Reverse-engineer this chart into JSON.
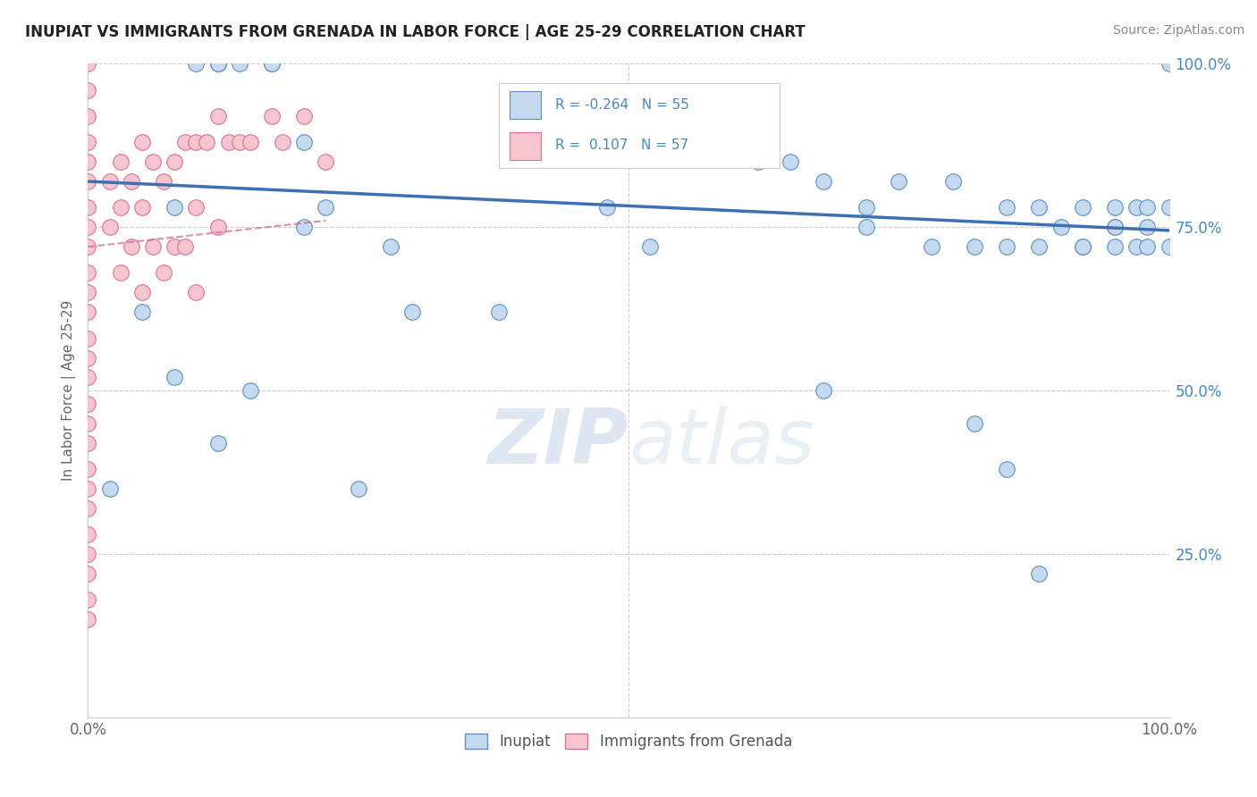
{
  "title": "INUPIAT VS IMMIGRANTS FROM GRENADA IN LABOR FORCE | AGE 25-29 CORRELATION CHART",
  "source": "Source: ZipAtlas.com",
  "ylabel": "In Labor Force | Age 25-29",
  "xlim": [
    0.0,
    1.0
  ],
  "ylim": [
    0.0,
    1.0
  ],
  "x_ticks": [
    0.0,
    0.25,
    0.5,
    0.75,
    1.0
  ],
  "x_tick_labels": [
    "0.0%",
    "",
    "",
    "",
    "100.0%"
  ],
  "y_ticks_right": [
    1.0,
    0.75,
    0.5,
    0.25,
    0.0
  ],
  "y_tick_labels_right": [
    "100.0%",
    "75.0%",
    "50.0%",
    "25.0%",
    ""
  ],
  "legend_r_blue": "-0.264",
  "legend_n_blue": "55",
  "legend_r_pink": "0.107",
  "legend_n_pink": "57",
  "blue_color": "#c5d9ef",
  "blue_edge_color": "#5b8fc9",
  "pink_color": "#f7c5d0",
  "pink_edge_color": "#e07090",
  "blue_line_color": "#3d6fb5",
  "pink_line_color": "#d06080",
  "watermark_color": "#d0dce8",
  "blue_line_x0": 0.0,
  "blue_line_y0": 0.82,
  "blue_line_x1": 1.0,
  "blue_line_y1": 0.745,
  "pink_line_x0": 0.0,
  "pink_line_y0": 0.72,
  "pink_line_x1": 0.22,
  "pink_line_y1": 0.76,
  "blue_scatter_x": [
    0.02,
    0.08,
    0.1,
    0.12,
    0.12,
    0.12,
    0.14,
    0.17,
    0.17,
    0.2,
    0.2,
    0.22,
    0.25,
    0.28,
    0.3,
    0.38,
    0.48,
    0.52,
    0.62,
    0.65,
    0.68,
    0.72,
    0.72,
    0.75,
    0.78,
    0.8,
    0.82,
    0.85,
    0.85,
    0.88,
    0.88,
    0.9,
    0.92,
    0.92,
    0.95,
    0.95,
    0.95,
    0.95,
    0.97,
    0.97,
    0.98,
    0.98,
    0.98,
    1.0,
    1.0,
    1.0,
    0.05,
    0.08,
    0.12,
    0.15,
    0.68,
    0.82,
    0.85,
    0.88,
    0.92
  ],
  "blue_scatter_y": [
    0.35,
    0.78,
    1.0,
    1.0,
    1.0,
    1.0,
    1.0,
    1.0,
    1.0,
    0.88,
    0.75,
    0.78,
    0.35,
    0.72,
    0.62,
    0.62,
    0.78,
    0.72,
    0.85,
    0.85,
    0.82,
    0.78,
    0.75,
    0.82,
    0.72,
    0.82,
    0.72,
    0.78,
    0.72,
    0.72,
    0.78,
    0.75,
    0.78,
    0.72,
    0.75,
    0.78,
    0.72,
    0.75,
    0.78,
    0.72,
    0.75,
    0.72,
    0.78,
    0.78,
    1.0,
    0.72,
    0.62,
    0.52,
    0.42,
    0.5,
    0.5,
    0.45,
    0.38,
    0.22,
    0.72
  ],
  "pink_scatter_x": [
    0.0,
    0.0,
    0.0,
    0.0,
    0.0,
    0.0,
    0.0,
    0.0,
    0.0,
    0.0,
    0.0,
    0.0,
    0.0,
    0.0,
    0.0,
    0.0,
    0.0,
    0.0,
    0.0,
    0.0,
    0.0,
    0.0,
    0.0,
    0.0,
    0.0,
    0.0,
    0.02,
    0.02,
    0.03,
    0.03,
    0.03,
    0.04,
    0.04,
    0.05,
    0.05,
    0.05,
    0.06,
    0.06,
    0.07,
    0.07,
    0.08,
    0.08,
    0.09,
    0.09,
    0.1,
    0.1,
    0.1,
    0.11,
    0.12,
    0.12,
    0.13,
    0.14,
    0.15,
    0.17,
    0.18,
    0.2,
    0.22
  ],
  "pink_scatter_y": [
    1.0,
    0.96,
    0.92,
    0.88,
    0.85,
    0.82,
    0.78,
    0.75,
    0.72,
    0.68,
    0.65,
    0.62,
    0.58,
    0.55,
    0.52,
    0.48,
    0.45,
    0.42,
    0.38,
    0.35,
    0.32,
    0.28,
    0.25,
    0.22,
    0.18,
    0.15,
    0.82,
    0.75,
    0.85,
    0.78,
    0.68,
    0.82,
    0.72,
    0.88,
    0.78,
    0.65,
    0.85,
    0.72,
    0.82,
    0.68,
    0.85,
    0.72,
    0.88,
    0.72,
    0.88,
    0.78,
    0.65,
    0.88,
    0.92,
    0.75,
    0.88,
    0.88,
    0.88,
    0.92,
    0.88,
    0.92,
    0.85
  ]
}
